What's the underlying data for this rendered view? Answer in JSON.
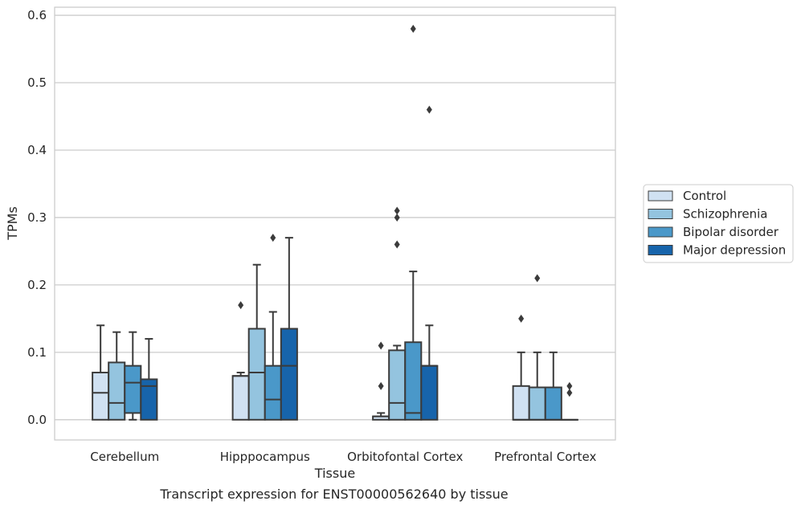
{
  "caption": "Transcript expression for ENST00000562640 by tissue",
  "chart_data": {
    "type": "boxplot",
    "xlabel": "Tissue",
    "ylabel": "TPMs",
    "ylim": [
      -0.03,
      0.612
    ],
    "yticks": [
      "0.0",
      "0.1",
      "0.2",
      "0.3",
      "0.4",
      "0.5",
      "0.6"
    ],
    "ytick_values": [
      0.0,
      0.1,
      0.2,
      0.3,
      0.4,
      0.5,
      0.6
    ],
    "grid": "horizontal",
    "legend_position": "right",
    "categories": [
      "Cerebellum",
      "Hipppocampus",
      "Orbitofontal Cortex",
      "Prefrontal Cortex"
    ],
    "series": [
      {
        "name": "Control",
        "color": "#d0e1f2",
        "boxes": [
          {
            "q1": 0.0,
            "median": 0.04,
            "q3": 0.07,
            "whislo": 0.0,
            "whishi": 0.14,
            "fliers": []
          },
          {
            "q1": 0.0,
            "median": 0.065,
            "q3": 0.065,
            "whislo": 0.0,
            "whishi": 0.07,
            "fliers": [
              0.17
            ]
          },
          {
            "q1": 0.0,
            "median": 0.005,
            "q3": 0.005,
            "whislo": 0.0,
            "whishi": 0.01,
            "fliers": [
              0.05,
              0.11
            ]
          },
          {
            "q1": 0.0,
            "median": 0.0,
            "q3": 0.05,
            "whislo": 0.0,
            "whishi": 0.1,
            "fliers": [
              0.15
            ]
          }
        ]
      },
      {
        "name": "Schizophrenia",
        "color": "#94c4df",
        "boxes": [
          {
            "q1": 0.0,
            "median": 0.025,
            "q3": 0.085,
            "whislo": 0.0,
            "whishi": 0.13,
            "fliers": []
          },
          {
            "q1": 0.0,
            "median": 0.07,
            "q3": 0.135,
            "whislo": 0.0,
            "whishi": 0.23,
            "fliers": []
          },
          {
            "q1": 0.0,
            "median": 0.025,
            "q3": 0.103,
            "whislo": 0.0,
            "whishi": 0.11,
            "fliers": [
              0.26,
              0.3,
              0.31
            ]
          },
          {
            "q1": 0.0,
            "median": 0.0,
            "q3": 0.048,
            "whislo": 0.0,
            "whishi": 0.1,
            "fliers": [
              0.21
            ]
          }
        ]
      },
      {
        "name": "Bipolar disorder",
        "color": "#4a98c9",
        "boxes": [
          {
            "q1": 0.01,
            "median": 0.055,
            "q3": 0.08,
            "whislo": 0.0,
            "whishi": 0.13,
            "fliers": []
          },
          {
            "q1": 0.0,
            "median": 0.03,
            "q3": 0.08,
            "whislo": 0.0,
            "whishi": 0.16,
            "fliers": [
              0.27
            ]
          },
          {
            "q1": 0.0,
            "median": 0.01,
            "q3": 0.115,
            "whislo": 0.0,
            "whishi": 0.22,
            "fliers": [
              0.58
            ]
          },
          {
            "q1": 0.0,
            "median": 0.0,
            "q3": 0.048,
            "whislo": 0.0,
            "whishi": 0.1,
            "fliers": []
          }
        ]
      },
      {
        "name": "Major depression",
        "color": "#1764ab",
        "boxes": [
          {
            "q1": 0.0,
            "median": 0.05,
            "q3": 0.06,
            "whislo": 0.0,
            "whishi": 0.12,
            "fliers": []
          },
          {
            "q1": 0.0,
            "median": 0.08,
            "q3": 0.135,
            "whislo": 0.0,
            "whishi": 0.27,
            "fliers": []
          },
          {
            "q1": 0.0,
            "median": 0.08,
            "q3": 0.08,
            "whislo": 0.0,
            "whishi": 0.14,
            "fliers": [
              0.46
            ]
          },
          {
            "q1": 0.0,
            "median": 0.0,
            "q3": 0.0,
            "whislo": 0.0,
            "whishi": 0.0,
            "fliers": [
              0.04,
              0.05
            ]
          }
        ]
      }
    ]
  }
}
